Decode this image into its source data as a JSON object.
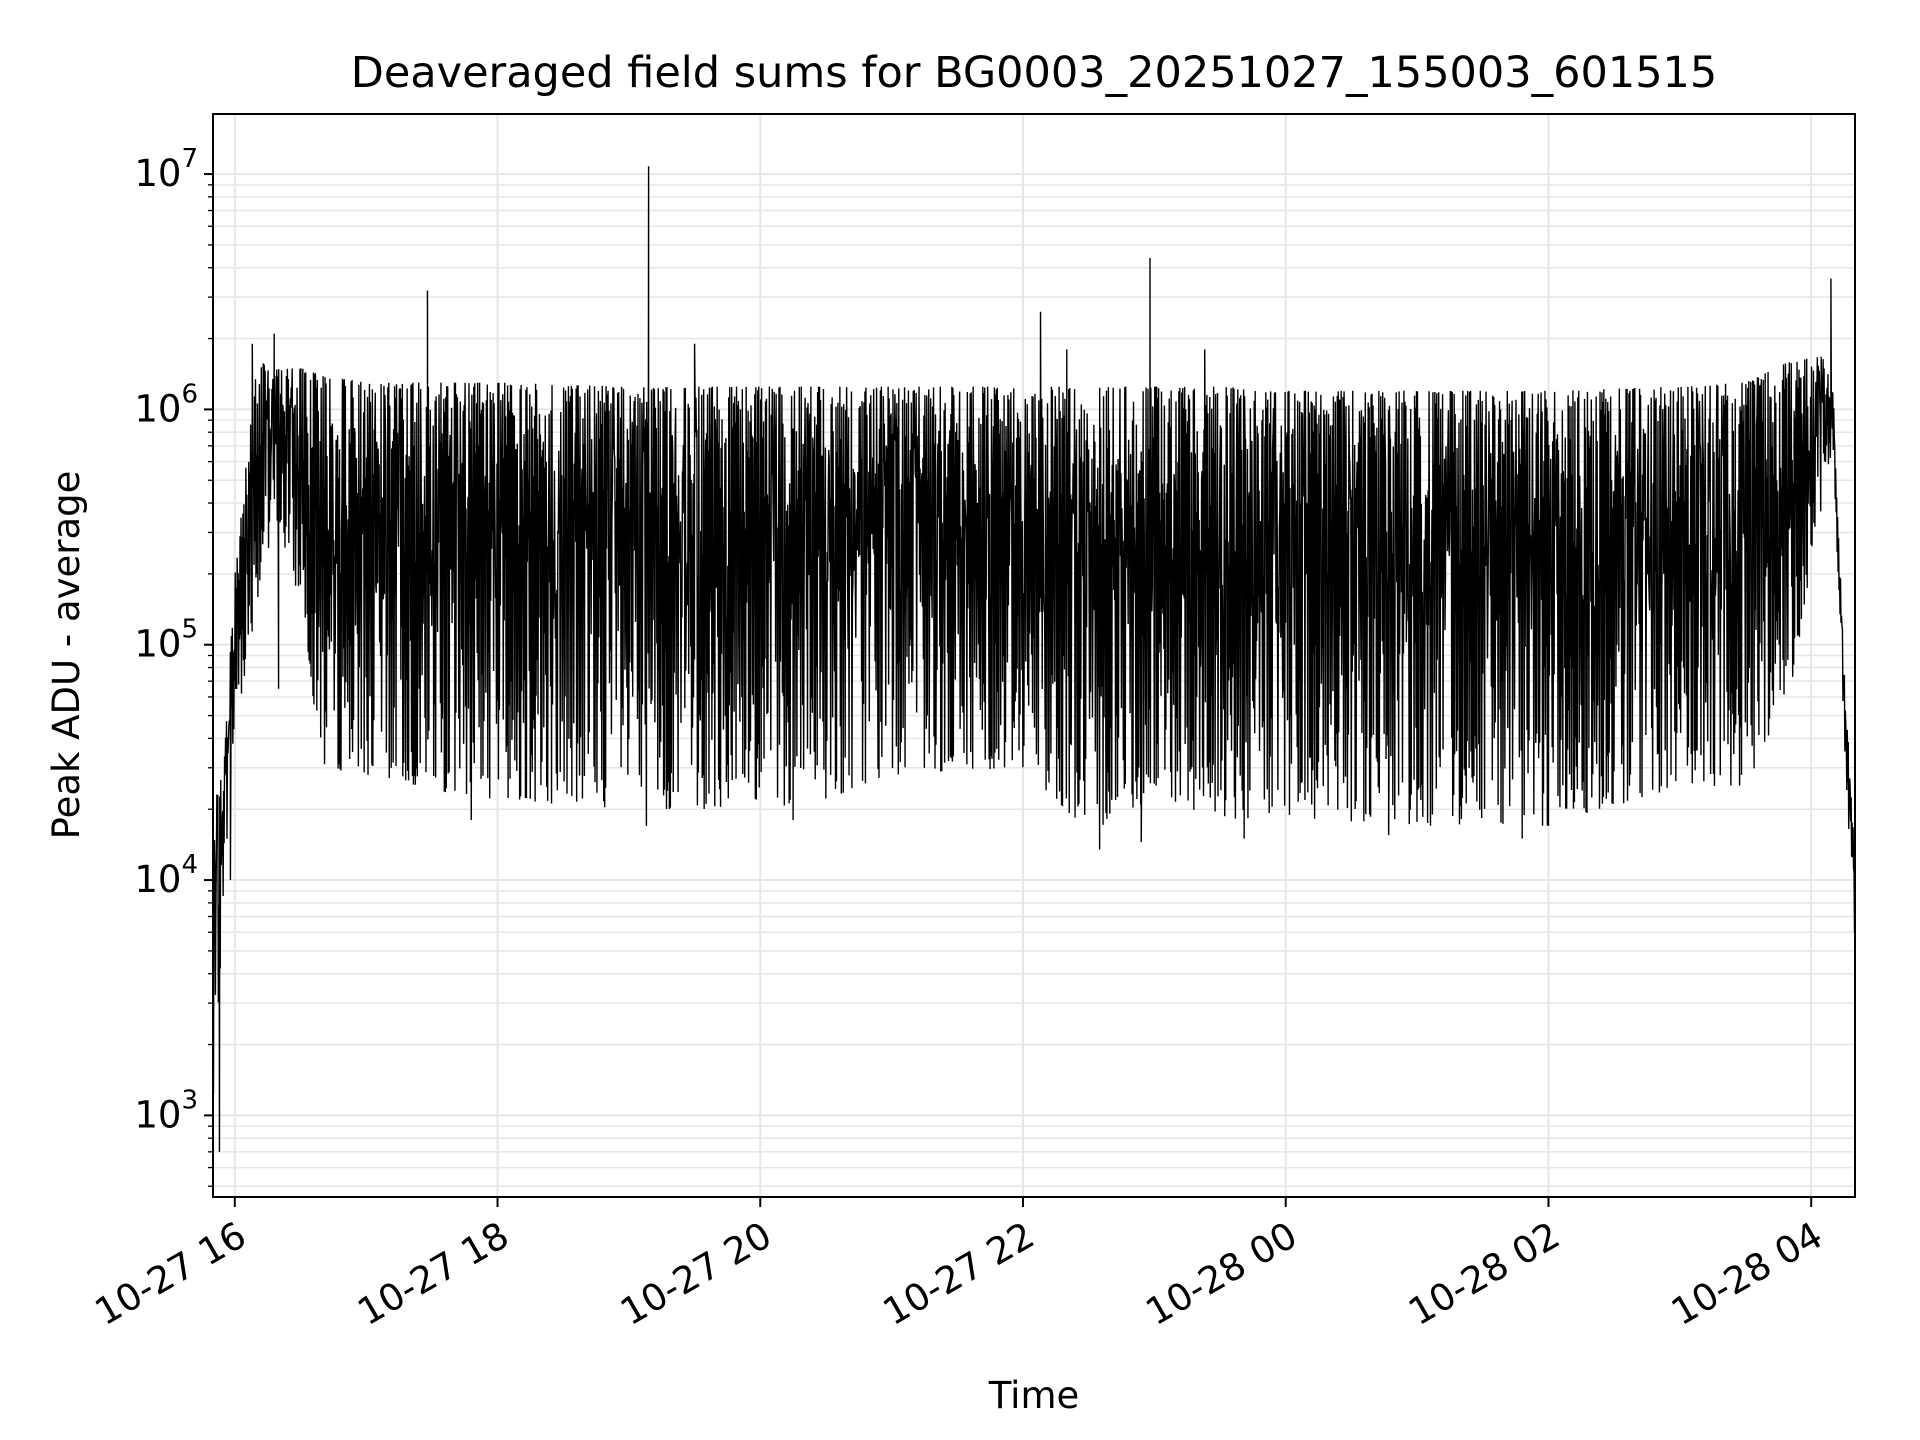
{
  "chart_data": {
    "type": "line",
    "title": "Deaveraged field sums for BG0003_20251027_155003_601515",
    "xlabel": "Time",
    "ylabel": "Peak ADU - average",
    "xscale": "time",
    "yscale": "log",
    "grid": true,
    "xlim": [
      "2025-10-27T15:50:03",
      "2025-10-28T04:20:00"
    ],
    "ylim": [
      450,
      18000000
    ],
    "x_ticks": [
      {
        "value": "2025-10-27T16:00",
        "label": "10-27 16"
      },
      {
        "value": "2025-10-27T18:00",
        "label": "10-27 18"
      },
      {
        "value": "2025-10-27T20:00",
        "label": "10-27 20"
      },
      {
        "value": "2025-10-27T22:00",
        "label": "10-27 22"
      },
      {
        "value": "2025-10-28T00:00",
        "label": "10-28 00"
      },
      {
        "value": "2025-10-28T02:00",
        "label": "10-28 02"
      },
      {
        "value": "2025-10-28T04:00",
        "label": "10-28 04"
      }
    ],
    "y_ticks": [
      {
        "value": 1000,
        "base": "10",
        "exp": "3"
      },
      {
        "value": 10000,
        "base": "10",
        "exp": "4"
      },
      {
        "value": 100000,
        "base": "10",
        "exp": "5"
      },
      {
        "value": 1000000,
        "base": "10",
        "exp": "6"
      },
      {
        "value": 10000000,
        "base": "10",
        "exp": "7"
      }
    ],
    "series": [
      {
        "color": "#000000",
        "envelope": {
          "x": [
            "2025-10-27T15:50",
            "2025-10-27T15:55",
            "2025-10-27T16:00",
            "2025-10-27T16:10",
            "2025-10-27T16:20",
            "2025-10-27T16:30",
            "2025-10-27T16:40",
            "2025-10-27T17:00",
            "2025-10-27T17:30",
            "2025-10-27T18:00",
            "2025-10-27T19:00",
            "2025-10-27T20:00",
            "2025-10-27T20:30",
            "2025-10-27T21:00",
            "2025-10-27T22:00",
            "2025-10-27T22:30",
            "2025-10-27T23:00",
            "2025-10-27T23:30",
            "2025-10-28T00:00",
            "2025-10-28T01:00",
            "2025-10-28T02:00",
            "2025-10-28T03:00",
            "2025-10-28T03:30",
            "2025-10-28T03:50",
            "2025-10-28T04:05",
            "2025-10-28T04:10",
            "2025-10-28T04:15",
            "2025-10-28T04:20"
          ],
          "upper": [
            20000,
            30000,
            200000,
            1600000,
            1500000,
            1500000,
            1400000,
            1300000,
            1300000,
            1300000,
            1250000,
            1250000,
            1250000,
            1250000,
            1250000,
            1250000,
            1250000,
            1250000,
            1200000,
            1200000,
            1200000,
            1250000,
            1300000,
            1600000,
            1700000,
            1200000,
            80000,
            12000
          ],
          "lower": [
            700,
            10000,
            40000,
            150000,
            300000,
            150000,
            30000,
            28000,
            24000,
            22000,
            20000,
            20000,
            22000,
            28000,
            30000,
            16000,
            22000,
            18000,
            18000,
            17000,
            17000,
            25000,
            25000,
            60000,
            400000,
            700000,
            40000,
            5000
          ]
        },
        "spikes": [
          {
            "x": "2025-10-27T16:08",
            "y": 1900000
          },
          {
            "x": "2025-10-27T16:18",
            "y": 2100000
          },
          {
            "x": "2025-10-27T17:28",
            "y": 3200000
          },
          {
            "x": "2025-10-27T19:09",
            "y": 10800000
          },
          {
            "x": "2025-10-27T19:30",
            "y": 1900000
          },
          {
            "x": "2025-10-27T22:08",
            "y": 2600000
          },
          {
            "x": "2025-10-27T22:20",
            "y": 1800000
          },
          {
            "x": "2025-10-27T22:58",
            "y": 4400000
          },
          {
            "x": "2025-10-27T23:23",
            "y": 1800000
          },
          {
            "x": "2025-10-28T04:09",
            "y": 3600000
          }
        ],
        "dips": [
          {
            "x": "2025-10-27T15:53",
            "y": 700
          },
          {
            "x": "2025-10-27T15:58",
            "y": 10000
          },
          {
            "x": "2025-10-27T16:20",
            "y": 65000
          },
          {
            "x": "2025-10-27T17:48",
            "y": 18000
          },
          {
            "x": "2025-10-27T19:08",
            "y": 17000
          },
          {
            "x": "2025-10-27T20:15",
            "y": 18000
          },
          {
            "x": "2025-10-27T22:35",
            "y": 13500
          },
          {
            "x": "2025-10-27T22:54",
            "y": 14500
          },
          {
            "x": "2025-10-27T23:41",
            "y": 15000
          },
          {
            "x": "2025-10-28T00:47",
            "y": 15500
          },
          {
            "x": "2025-10-28T01:48",
            "y": 15000
          },
          {
            "x": "2025-10-28T02:00",
            "y": 17000
          }
        ]
      }
    ]
  }
}
